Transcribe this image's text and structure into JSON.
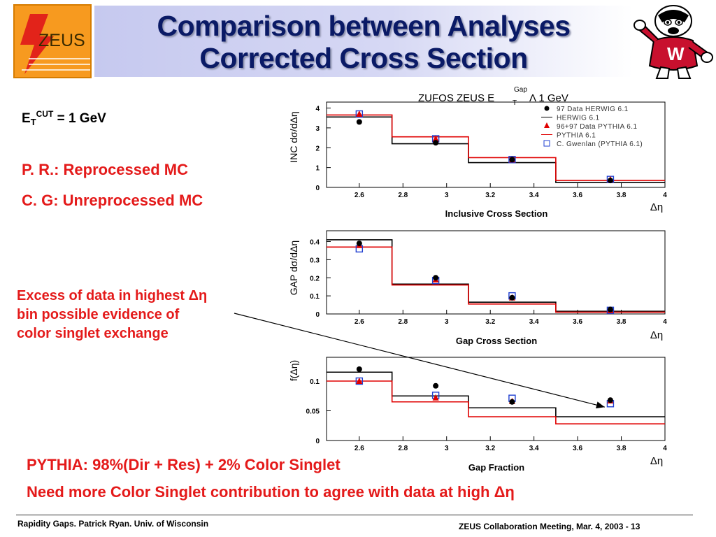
{
  "title": {
    "line1": "Comparison between Analyses",
    "line2": "Corrected Cross Section"
  },
  "logo": {
    "text": "ZEUS"
  },
  "notes": {
    "et_base": "E",
    "et_sub": "T",
    "et_sup": "CUT",
    "et_value": " = 1 GeV",
    "pr": "P. R.: Reprocessed MC",
    "cg": "C. G: Unreprocessed MC",
    "excess_line1": "Excess of data in highest  Δη",
    "excess_line2": "bin possible evidence of",
    "excess_line3": "color singlet exchange",
    "pythia": "PYTHIA: 98%(Dir + Res)  + 2% Color Singlet",
    "need_more": "Need more Color Singlet contribution to agree with data at high Δη"
  },
  "footer": {
    "left": "Rapidity Gaps. Patrick Ryan. Univ. of Wisconsin",
    "right": "ZEUS Collaboration Meeting, Mar. 4, 2003 - 13"
  },
  "colors": {
    "title": "#0a1a66",
    "red_text": "#e41a1a",
    "data_black": "#000000",
    "pythia_red": "#e00000",
    "gwenlan_blue": "#1f3fd0",
    "title_band": "#c6c9ef"
  },
  "chart_data": [
    {
      "type": "line",
      "title": "ZUFOS ZEUS E",
      "title_sub": "T",
      "title_sup": "Gap",
      "title_tail": " Λ 1 GeV",
      "subtitle": "Inclusive Cross Section",
      "ylabel": "INC dσ/dΔη",
      "xlabel": "Δη",
      "xlim": [
        2.45,
        4.0
      ],
      "ylim": [
        0,
        4.3
      ],
      "xticks": [
        "2.6",
        "2.8",
        "3",
        "3.2",
        "3.4",
        "3.6",
        "3.8",
        "4"
      ],
      "yticks": [
        "0",
        "1",
        "2",
        "3",
        "4"
      ],
      "bin_edges": [
        2.45,
        2.75,
        3.1,
        3.5,
        4.0
      ],
      "herwig_hist": [
        3.55,
        2.2,
        1.25,
        0.25
      ],
      "pythia_hist": [
        3.65,
        2.55,
        1.5,
        0.35
      ],
      "data_herwig": {
        "x": [
          2.6,
          2.95,
          3.3,
          3.75
        ],
        "y": [
          3.3,
          2.25,
          1.4,
          0.35
        ]
      },
      "data_pythia": {
        "x": [
          2.6,
          2.95,
          3.3,
          3.75
        ],
        "y": [
          3.7,
          2.45,
          1.4,
          0.4
        ]
      },
      "gwenlan": {
        "x": [
          2.6,
          2.95,
          3.3,
          3.75
        ],
        "y": [
          3.7,
          2.45,
          1.4,
          0.4
        ]
      },
      "legend": [
        "97 Data HERWIG 6.1",
        "HERWIG 6.1",
        "96+97 Data PYTHIA 6.1",
        "PYTHIA 6.1",
        "C. Gwenlan (PYTHIA 6.1)"
      ],
      "legend_position": "top-right"
    },
    {
      "type": "line",
      "subtitle": "Gap Cross Section",
      "ylabel": "GAP dσ/dΔη",
      "xlabel": "Δη",
      "xlim": [
        2.45,
        4.0
      ],
      "ylim": [
        0,
        0.46
      ],
      "xticks": [
        "2.6",
        "2.8",
        "3",
        "3.2",
        "3.4",
        "3.6",
        "3.8",
        "4"
      ],
      "yticks": [
        "0",
        "0.1",
        "0.2",
        "0.3",
        "0.4"
      ],
      "bin_edges": [
        2.45,
        2.75,
        3.1,
        3.5,
        4.0
      ],
      "herwig_hist": [
        0.41,
        0.165,
        0.065,
        0.015
      ],
      "pythia_hist": [
        0.37,
        0.16,
        0.055,
        0.01
      ],
      "data_herwig": {
        "x": [
          2.6,
          2.95,
          3.3,
          3.75
        ],
        "y": [
          0.39,
          0.2,
          0.09,
          0.025
        ]
      },
      "data_pythia": {
        "x": [
          2.6,
          2.95,
          3.3,
          3.75
        ],
        "y": [
          0.38,
          0.19,
          0.09,
          0.02
        ]
      },
      "gwenlan": {
        "x": [
          2.6,
          2.95,
          3.3,
          3.75
        ],
        "y": [
          0.36,
          0.185,
          0.1,
          0.02
        ]
      }
    },
    {
      "type": "line",
      "subtitle": "Gap Fraction",
      "ylabel": "f(Δη)",
      "xlabel": "Δη",
      "xlim": [
        2.45,
        4.0
      ],
      "ylim": [
        0,
        0.14
      ],
      "xticks": [
        "2.6",
        "2.8",
        "3",
        "3.2",
        "3.4",
        "3.6",
        "3.8",
        "4"
      ],
      "yticks": [
        "0",
        "0.05",
        "0.1"
      ],
      "bin_edges": [
        2.45,
        2.75,
        3.1,
        3.5,
        4.0
      ],
      "herwig_hist": [
        0.115,
        0.075,
        0.055,
        0.04
      ],
      "pythia_hist": [
        0.1,
        0.065,
        0.04,
        0.028
      ],
      "data_herwig": {
        "x": [
          2.6,
          2.95,
          3.3,
          3.75
        ],
        "y": [
          0.12,
          0.092,
          0.065,
          0.068
        ]
      },
      "data_pythia": {
        "x": [
          2.6,
          2.95,
          3.3,
          3.75
        ],
        "y": [
          0.1,
          0.072,
          0.066,
          0.067
        ]
      },
      "gwenlan": {
        "x": [
          2.6,
          2.95,
          3.3,
          3.75
        ],
        "y": [
          0.1,
          0.076,
          0.071,
          0.062
        ]
      }
    }
  ]
}
